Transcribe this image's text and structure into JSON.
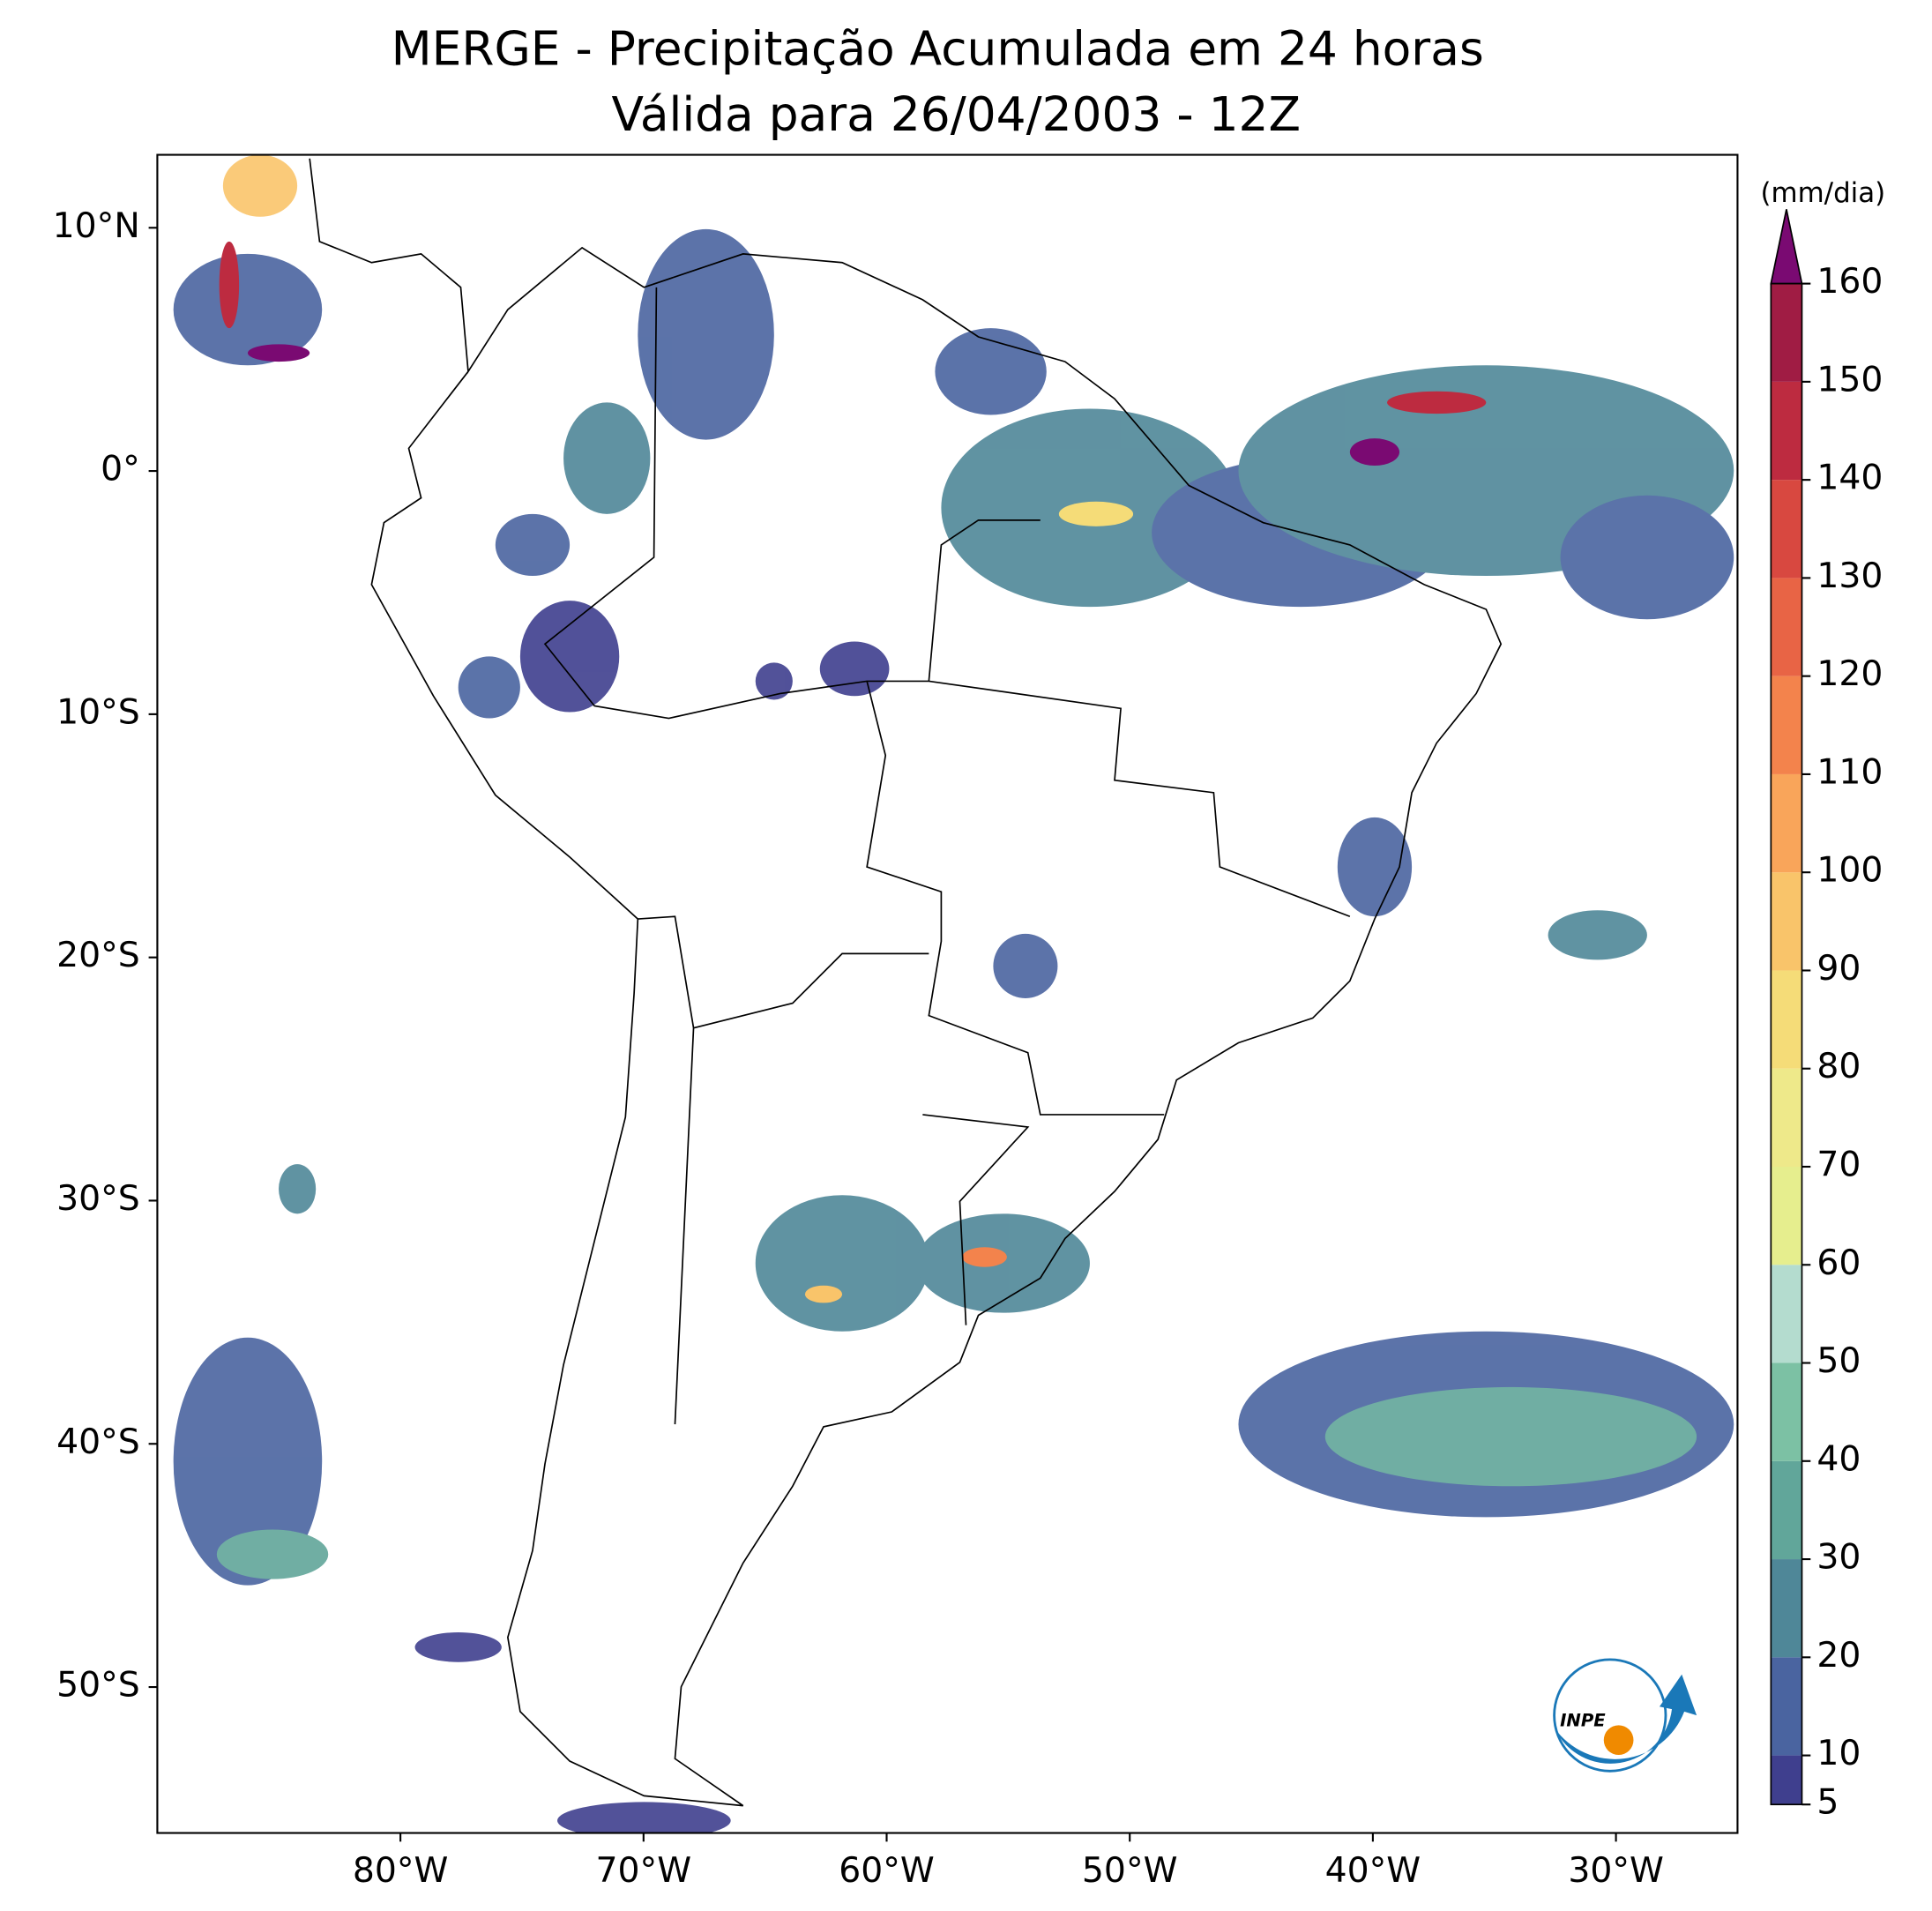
{
  "chart_data": {
    "type": "map",
    "title": "MERGE - Precipitação Acumulada em 24 horas",
    "subtitle": "Válida para 26/04/2003 - 12Z",
    "xlim": [
      -90,
      -25
    ],
    "ylim": [
      -56,
      13
    ],
    "xticks": [
      {
        "value": -80,
        "label": "80°W"
      },
      {
        "value": -70,
        "label": "70°W"
      },
      {
        "value": -60,
        "label": "60°W"
      },
      {
        "value": -50,
        "label": "50°W"
      },
      {
        "value": -40,
        "label": "40°W"
      },
      {
        "value": -30,
        "label": "30°W"
      }
    ],
    "yticks": [
      {
        "value": 10,
        "label": "10°N"
      },
      {
        "value": 0,
        "label": "0°"
      },
      {
        "value": -10,
        "label": "10°S"
      },
      {
        "value": -20,
        "label": "20°S"
      },
      {
        "value": -30,
        "label": "30°S"
      },
      {
        "value": -40,
        "label": "40°S"
      },
      {
        "value": -50,
        "label": "50°S"
      }
    ],
    "colorbar": {
      "label": "(mm/dia)",
      "clim": [
        5,
        160
      ],
      "ticks": [
        5,
        10,
        20,
        30,
        40,
        50,
        60,
        70,
        80,
        90,
        100,
        110,
        120,
        130,
        140,
        150,
        160
      ],
      "colors": [
        "#3f3f8e",
        "#4a64a0",
        "#4f8798",
        "#61a69a",
        "#7cc1a4",
        "#b4dccf",
        "#e6ee8e",
        "#eee98a",
        "#f5dc78",
        "#f9c46a",
        "#f9a55a",
        "#f3834c",
        "#e86445",
        "#d84840",
        "#bd2b40",
        "#a01c44"
      ],
      "extend_color": "#7a0a72"
    },
    "logo_text": "INPE"
  }
}
